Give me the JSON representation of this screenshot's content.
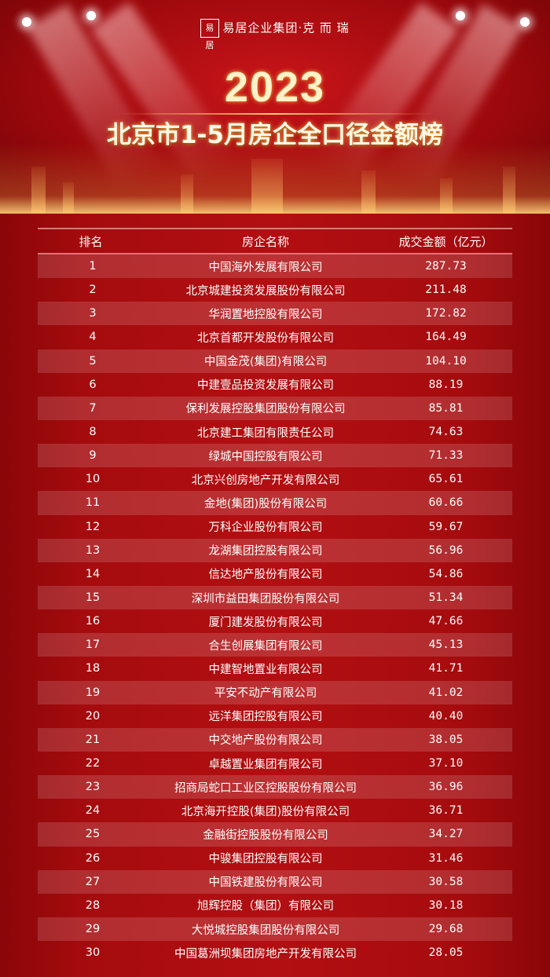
{
  "header": {
    "logo_text": "易居企业集团·克 而 瑞",
    "logo_mark": "易居",
    "year": "2023",
    "title": "北京市1-5月房企全口径金额榜"
  },
  "table": {
    "columns": [
      "排名",
      "房企名称",
      "成交金额（亿元）"
    ],
    "rows": [
      {
        "rank": "1",
        "name": "中国海外发展有限公司",
        "amount": "287.73"
      },
      {
        "rank": "2",
        "name": "北京城建投资发展股份有限公司",
        "amount": "211.48"
      },
      {
        "rank": "3",
        "name": "华润置地控股有限公司",
        "amount": "172.82"
      },
      {
        "rank": "4",
        "name": "北京首都开发股份有限公司",
        "amount": "164.49"
      },
      {
        "rank": "5",
        "name": "中国金茂(集团)有限公司",
        "amount": "104.10"
      },
      {
        "rank": "6",
        "name": "中建壹品投资发展有限公司",
        "amount": "88.19"
      },
      {
        "rank": "7",
        "name": "保利发展控股集团股份有限公司",
        "amount": "85.81"
      },
      {
        "rank": "8",
        "name": "北京建工集团有限责任公司",
        "amount": "74.63"
      },
      {
        "rank": "9",
        "name": "绿城中国控股有限公司",
        "amount": "71.33"
      },
      {
        "rank": "10",
        "name": "北京兴创房地产开发有限公司",
        "amount": "65.61"
      },
      {
        "rank": "11",
        "name": "金地(集团)股份有限公司",
        "amount": "60.66"
      },
      {
        "rank": "12",
        "name": "万科企业股份有限公司",
        "amount": "59.67"
      },
      {
        "rank": "13",
        "name": "龙湖集团控股有限公司",
        "amount": "56.96"
      },
      {
        "rank": "14",
        "name": "信达地产股份有限公司",
        "amount": "54.86"
      },
      {
        "rank": "15",
        "name": "深圳市益田集团股份有限公司",
        "amount": "51.34"
      },
      {
        "rank": "16",
        "name": "厦门建发股份有限公司",
        "amount": "47.66"
      },
      {
        "rank": "17",
        "name": "合生创展集团有限公司",
        "amount": "45.13"
      },
      {
        "rank": "18",
        "name": "中建智地置业有限公司",
        "amount": "41.71"
      },
      {
        "rank": "19",
        "name": "平安不动产有限公司",
        "amount": "41.02"
      },
      {
        "rank": "20",
        "name": "远洋集团控股有限公司",
        "amount": "40.40"
      },
      {
        "rank": "21",
        "name": "中交地产股份有限公司",
        "amount": "38.05"
      },
      {
        "rank": "22",
        "name": "卓越置业集团有限公司",
        "amount": "37.10"
      },
      {
        "rank": "23",
        "name": "招商局蛇口工业区控股股份有限公司",
        "amount": "36.96"
      },
      {
        "rank": "24",
        "name": "北京海开控股(集团)股份有限公司",
        "amount": "36.71"
      },
      {
        "rank": "25",
        "name": "金融街控股股份有限公司",
        "amount": "34.27"
      },
      {
        "rank": "26",
        "name": "中骏集团控股有限公司",
        "amount": "31.46"
      },
      {
        "rank": "27",
        "name": "中国铁建股份有限公司",
        "amount": "30.58"
      },
      {
        "rank": "28",
        "name": "旭辉控股（集团）有限公司",
        "amount": "30.18"
      },
      {
        "rank": "29",
        "name": "大悦城控股集团股份有限公司",
        "amount": "29.68"
      },
      {
        "rank": "30",
        "name": "中国葛洲坝集团房地产开发有限公司",
        "amount": "28.05"
      }
    ]
  },
  "colors": {
    "background": "#a50b0e",
    "title_glow": "#ffb84a",
    "row_band": "rgba(255,255,255,0.14)"
  }
}
